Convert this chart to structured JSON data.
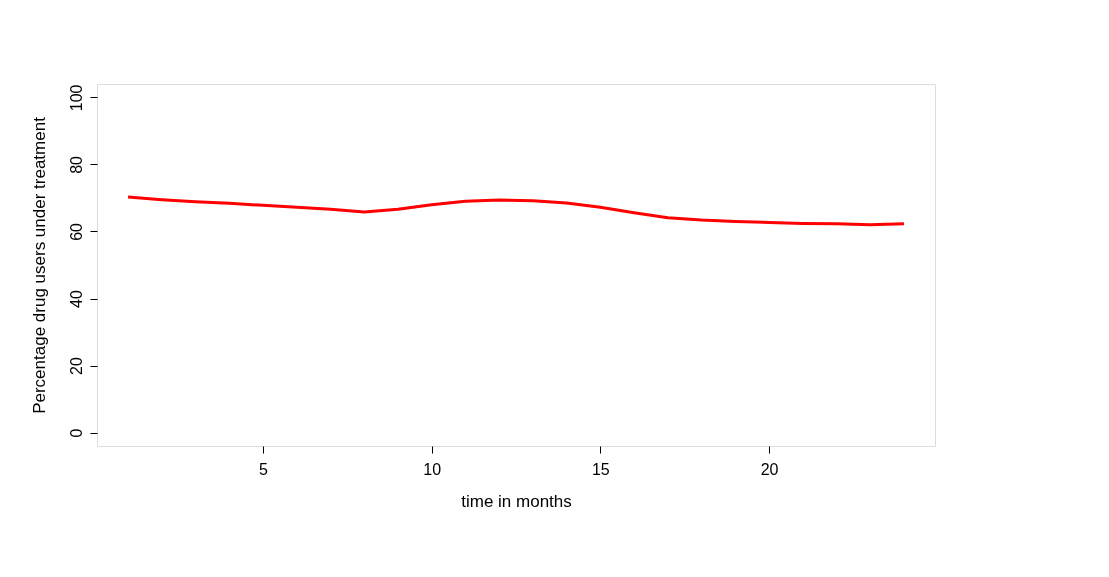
{
  "chart_data": {
    "type": "line",
    "xlabel": "time in months",
    "ylabel": "Percentage drug users under treatment",
    "x": [
      1,
      2,
      3,
      4,
      5,
      6,
      7,
      8,
      9,
      10,
      11,
      12,
      13,
      14,
      15,
      16,
      17,
      18,
      19,
      20,
      21,
      22,
      23,
      24
    ],
    "series": [
      {
        "color": "#ff0000",
        "values": [
          70.3,
          69.5,
          68.9,
          68.4,
          67.8,
          67.2,
          66.6,
          65.8,
          66.6,
          68.0,
          69.0,
          69.4,
          69.2,
          68.5,
          67.2,
          65.6,
          64.1,
          63.4,
          63.0,
          62.7,
          62.4,
          62.3,
          62.0,
          62.3
        ]
      }
    ],
    "xlim": [
      0.08,
      24.92
    ],
    "ylim": [
      -4,
      104
    ],
    "xticks": [
      5,
      10,
      15,
      20
    ],
    "yticks": [
      0,
      20,
      40,
      60,
      80,
      100
    ],
    "grid": false,
    "legend": false,
    "marker": "none",
    "line_style": "solid"
  }
}
